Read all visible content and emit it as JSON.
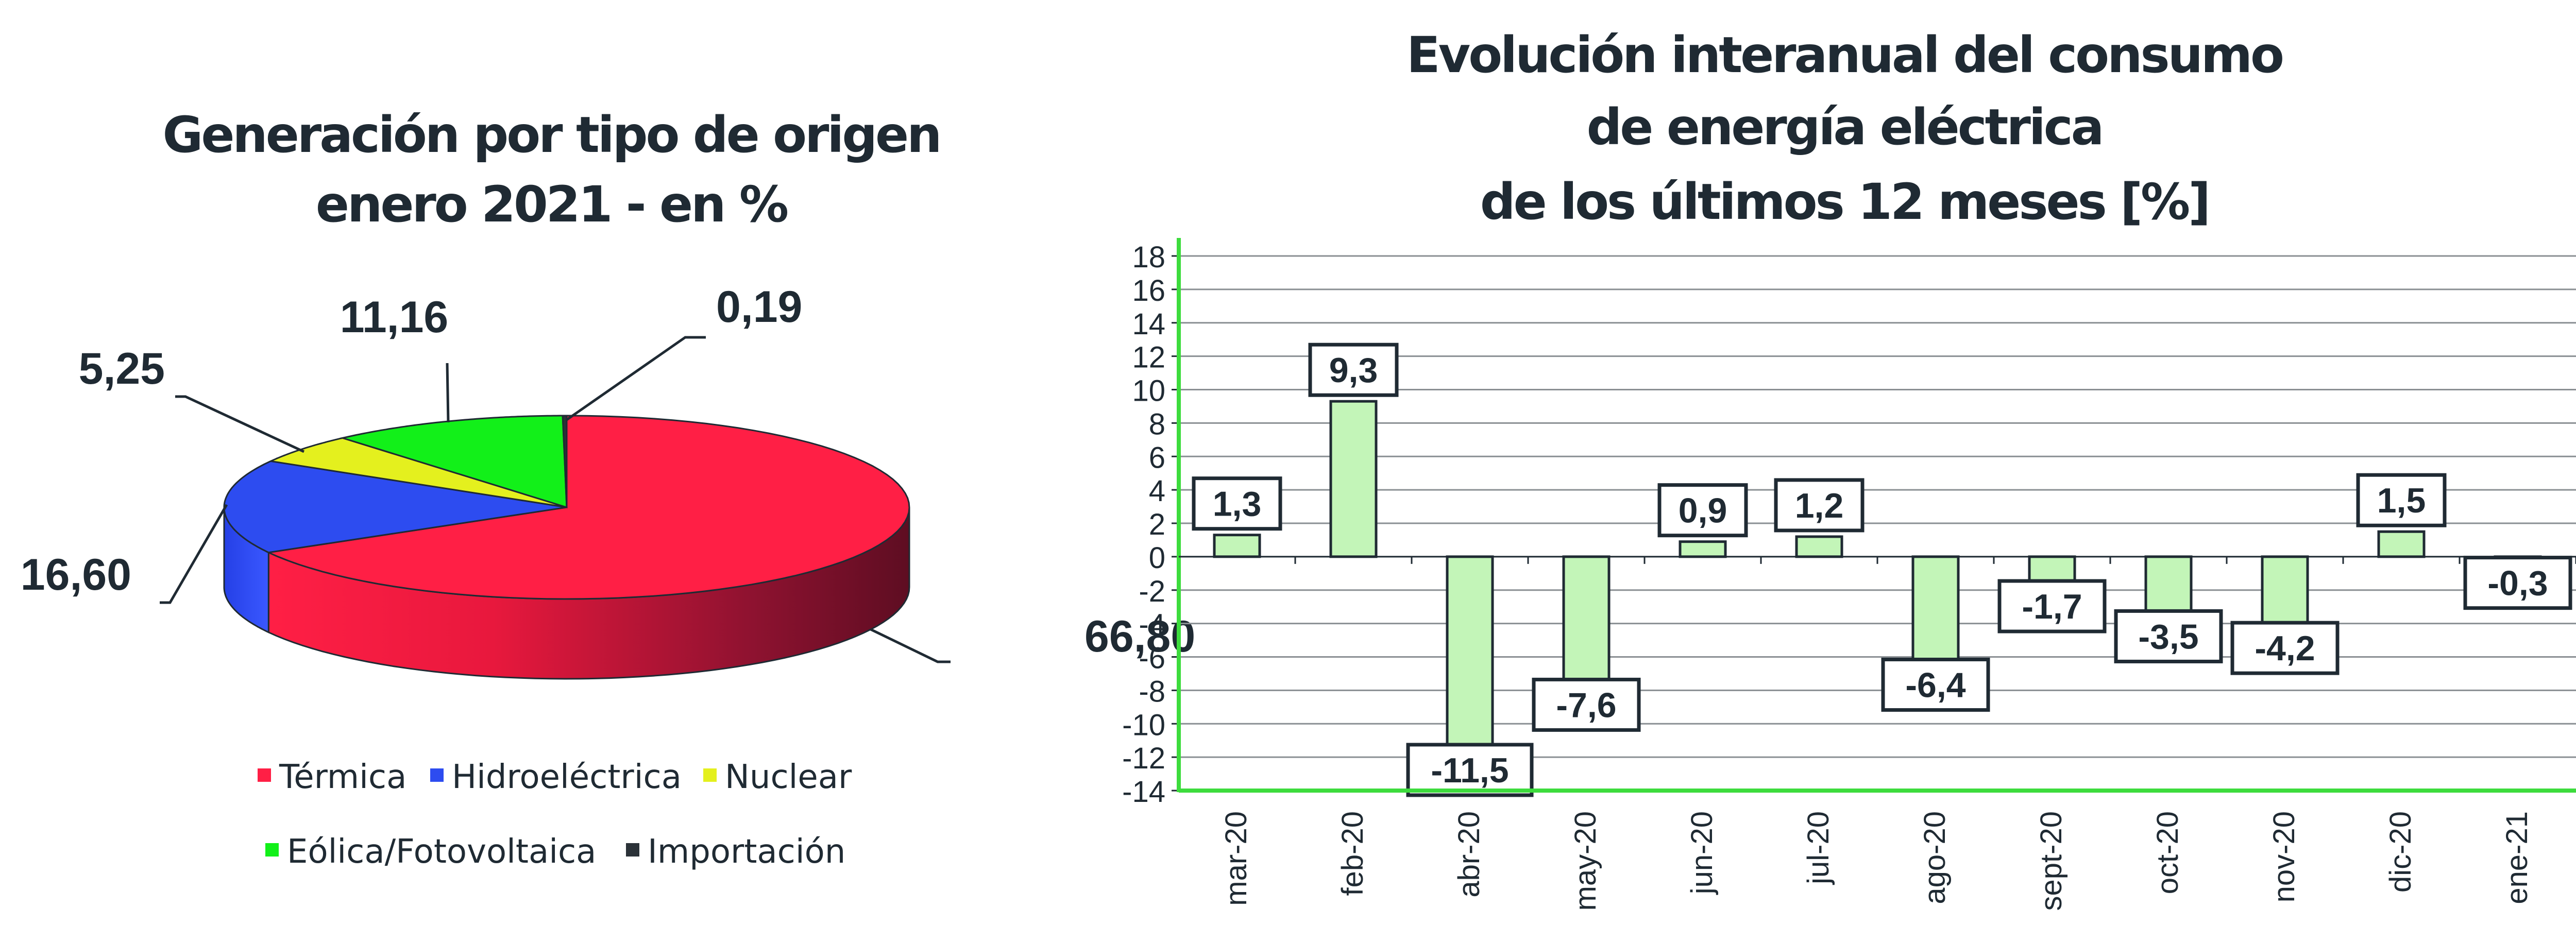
{
  "chart_data": [
    {
      "type": "pie",
      "title": "Generación por tipo de origen",
      "subtitle": "enero 2021 - en %",
      "categories": [
        "Térmica",
        "Hidroeléctrica",
        "Nuclear",
        "Eólica/Fotovoltaica",
        "Importación"
      ],
      "values": [
        66.8,
        16.6,
        5.25,
        11.16,
        0.19
      ],
      "data_labels": [
        "66,80",
        "16,60",
        "5,25",
        "11,16",
        "0,19"
      ],
      "legend_placement": "bottom",
      "three_d": true
    },
    {
      "type": "bar",
      "title_lines": [
        "Evolución interanual del consumo",
        "de energía eléctrica",
        "de los últimos 12 meses [%]"
      ],
      "categories": [
        "mar-20",
        "feb-20",
        "abr-20",
        "may-20",
        "jun-20",
        "jul-20",
        "ago-20",
        "sept-20",
        "oct-20",
        "nov-20",
        "dic-20",
        "ene-21"
      ],
      "values": [
        1.3,
        9.3,
        -11.5,
        -7.6,
        0.9,
        1.2,
        -6.4,
        -1.7,
        -3.5,
        -4.2,
        1.5,
        -0.3
      ],
      "data_labels": [
        "1,3",
        "9,3",
        "-11,5",
        "-7,6",
        "0,9",
        "1,2",
        "-6,4",
        "-1,7",
        "-3,5",
        "-4,2",
        "1,5",
        "-0,3"
      ],
      "ylim": [
        -14,
        18
      ],
      "yticks": [
        18,
        16,
        14,
        12,
        10,
        8,
        6,
        4,
        2,
        0,
        -2,
        -4,
        -6,
        -8,
        -10,
        -12,
        -14
      ],
      "xlabel": "",
      "ylabel": "",
      "grid": true
    }
  ],
  "colors": {
    "termica": "#ff1f45",
    "hidroelectrica": "#2d4cf0",
    "nuclear": "#e4f01e",
    "eolica": "#12f019",
    "importacion": "#2b3238",
    "bar_fill": "#c3f5b8",
    "axis_green": "#3ddc3d",
    "grid": "#8a8f93",
    "text": "#1f2a33"
  }
}
